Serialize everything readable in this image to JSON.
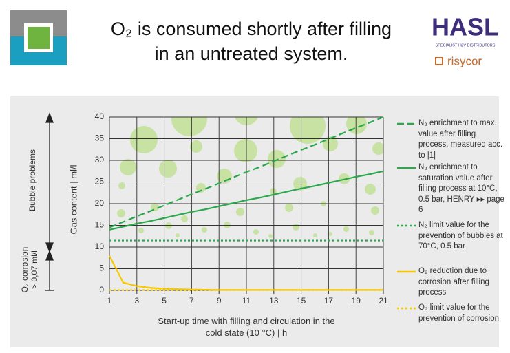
{
  "header": {
    "title": [
      "O₂ is consumed shortly after filling",
      "in an untreated system."
    ],
    "logo": {
      "brand": "HASL",
      "tagline": "SPECIALIST H&V DISTRIBUTORS",
      "partner": "risycor"
    }
  },
  "chart_data": {
    "type": "line",
    "ylabel": "Gas content | ml/l",
    "xlabel": "Start-up time with filling and circulation in the cold state (10 °C) | h",
    "annotations": [
      "Bubble problems",
      "O₂ corrosion",
      "> 0,07 ml/l"
    ],
    "x": [
      1,
      2,
      3,
      4,
      5,
      6,
      7,
      8,
      9,
      10,
      11,
      12,
      13,
      14,
      15,
      16,
      17,
      18,
      19,
      20,
      21
    ],
    "xlim": [
      1,
      21
    ],
    "xticks": [
      1,
      3,
      5,
      7,
      9,
      11,
      13,
      15,
      17,
      19,
      21
    ],
    "ylim": [
      0,
      40
    ],
    "yticks": [
      0,
      5,
      10,
      15,
      20,
      25,
      30,
      35,
      40
    ],
    "grid": true,
    "series": [
      {
        "name": "N₂ enrichment to max. value after filling process, measured acc. to |1|",
        "color": "#2aa84a",
        "dash": "dashed",
        "values": [
          14.5,
          15.8,
          17.1,
          18.3,
          19.6,
          20.9,
          22.2,
          23.4,
          24.7,
          26,
          27.3,
          28.5,
          29.8,
          31.1,
          32.4,
          33.6,
          34.9,
          36.2,
          37.5,
          38.7,
          40
        ]
      },
      {
        "name": "N₂ enrichment to saturation value after filling process at 10°C, 0.5 bar, HENRY ▸▸ page 6",
        "color": "#2aa84a",
        "dash": "solid",
        "values": [
          14,
          14.7,
          15.4,
          16,
          16.7,
          17.4,
          18.1,
          18.7,
          19.4,
          20.1,
          20.8,
          21.4,
          22.1,
          22.8,
          23.5,
          24.1,
          24.8,
          25.5,
          26.2,
          26.8,
          27.5
        ]
      },
      {
        "name": "N₂ limit value for the prevention of bubbles at 70°C, 0.5 bar",
        "color": "#2aa84a",
        "dash": "dotted",
        "values": [
          11.5,
          11.5,
          11.5,
          11.5,
          11.5,
          11.5,
          11.5,
          11.5,
          11.5,
          11.5,
          11.5,
          11.5,
          11.5,
          11.5,
          11.5,
          11.5,
          11.5,
          11.5,
          11.5,
          11.5,
          11.5
        ]
      },
      {
        "name": "O₂ reduction due to corrosion after filling process",
        "color": "#f5c800",
        "dash": "solid",
        "values": [
          8,
          1.8,
          1,
          0.6,
          0.4,
          0.3,
          0.2,
          0.15,
          0.1,
          0.1,
          0.1,
          0.1,
          0.1,
          0.1,
          0.1,
          0.1,
          0.1,
          0.1,
          0.1,
          0.1,
          0.1
        ]
      },
      {
        "name": "O₂ limit value for the prevention of corrosion",
        "color": "#f5c800",
        "dash": "dotted",
        "values": [
          0.07,
          0.07,
          0.07,
          0.07,
          0.07,
          0.07,
          0.07,
          0.07,
          0.07,
          0.07,
          0.07,
          0.07,
          0.07,
          0.07,
          0.07,
          0.07,
          0.07,
          0.07,
          0.07,
          0.07,
          0.07
        ]
      }
    ]
  }
}
